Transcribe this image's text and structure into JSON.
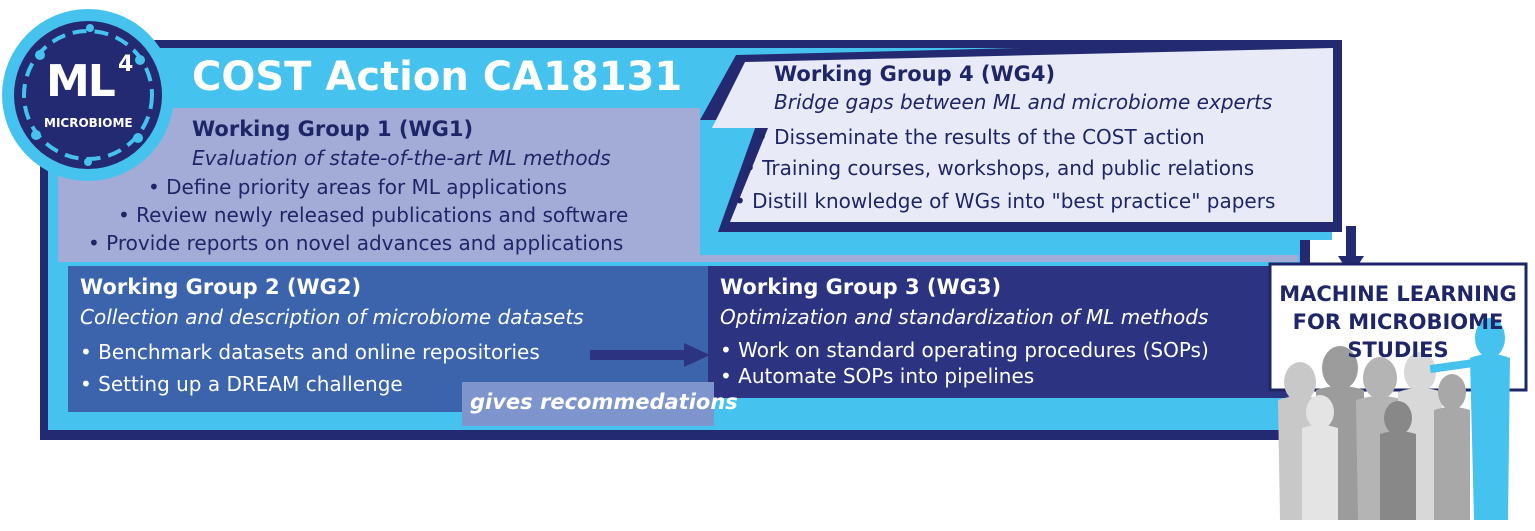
{
  "header": {
    "title": "COST Action CA18131"
  },
  "logo": {
    "main": "ML",
    "superscript": "4",
    "sub": "MICROBIOME"
  },
  "wg1": {
    "heading": "Working Group 1 (WG1)",
    "subtitle": "Evaluation of state-of-the-art ML methods",
    "bullets": [
      "• Define priority areas for ML applications",
      "• Review newly released publications and software",
      "• Provide reports on novel advances and applications"
    ]
  },
  "wg2": {
    "heading": "Working Group 2 (WG2)",
    "subtitle": "Collection and description of microbiome datasets",
    "bullets": [
      "• Benchmark datasets and online repositories",
      "• Setting up a DREAM challenge"
    ]
  },
  "wg3": {
    "heading": "Working Group 3 (WG3)",
    "subtitle": "Optimization and standardization of ML methods",
    "bullets": [
      "• Work on standard operating procedures (SOPs)",
      "• Automate SOPs into pipelines"
    ]
  },
  "wg4": {
    "heading": "Working Group 4 (WG4)",
    "subtitle": "Bridge gaps between ML and microbiome experts",
    "bullets": [
      "• Disseminate the results of the COST action",
      "• Training courses, workshops, and public relations",
      "• Distill knowledge of WGs into \"best practice\" papers"
    ]
  },
  "arrow_label": "gives recommedations",
  "target_box": {
    "lines": [
      "MACHINE LEARNING",
      "FOR MICROBIOME",
      "STUDIES"
    ]
  },
  "colors": {
    "navy": "#232a72",
    "cyan": "#45c3ee",
    "lavender": "#a3acd6",
    "wg2_blue": "#3c64ad",
    "wg3_navy": "#2c3482",
    "wg4_light": "#e8ebf7",
    "label_box": "#7d95cc"
  }
}
